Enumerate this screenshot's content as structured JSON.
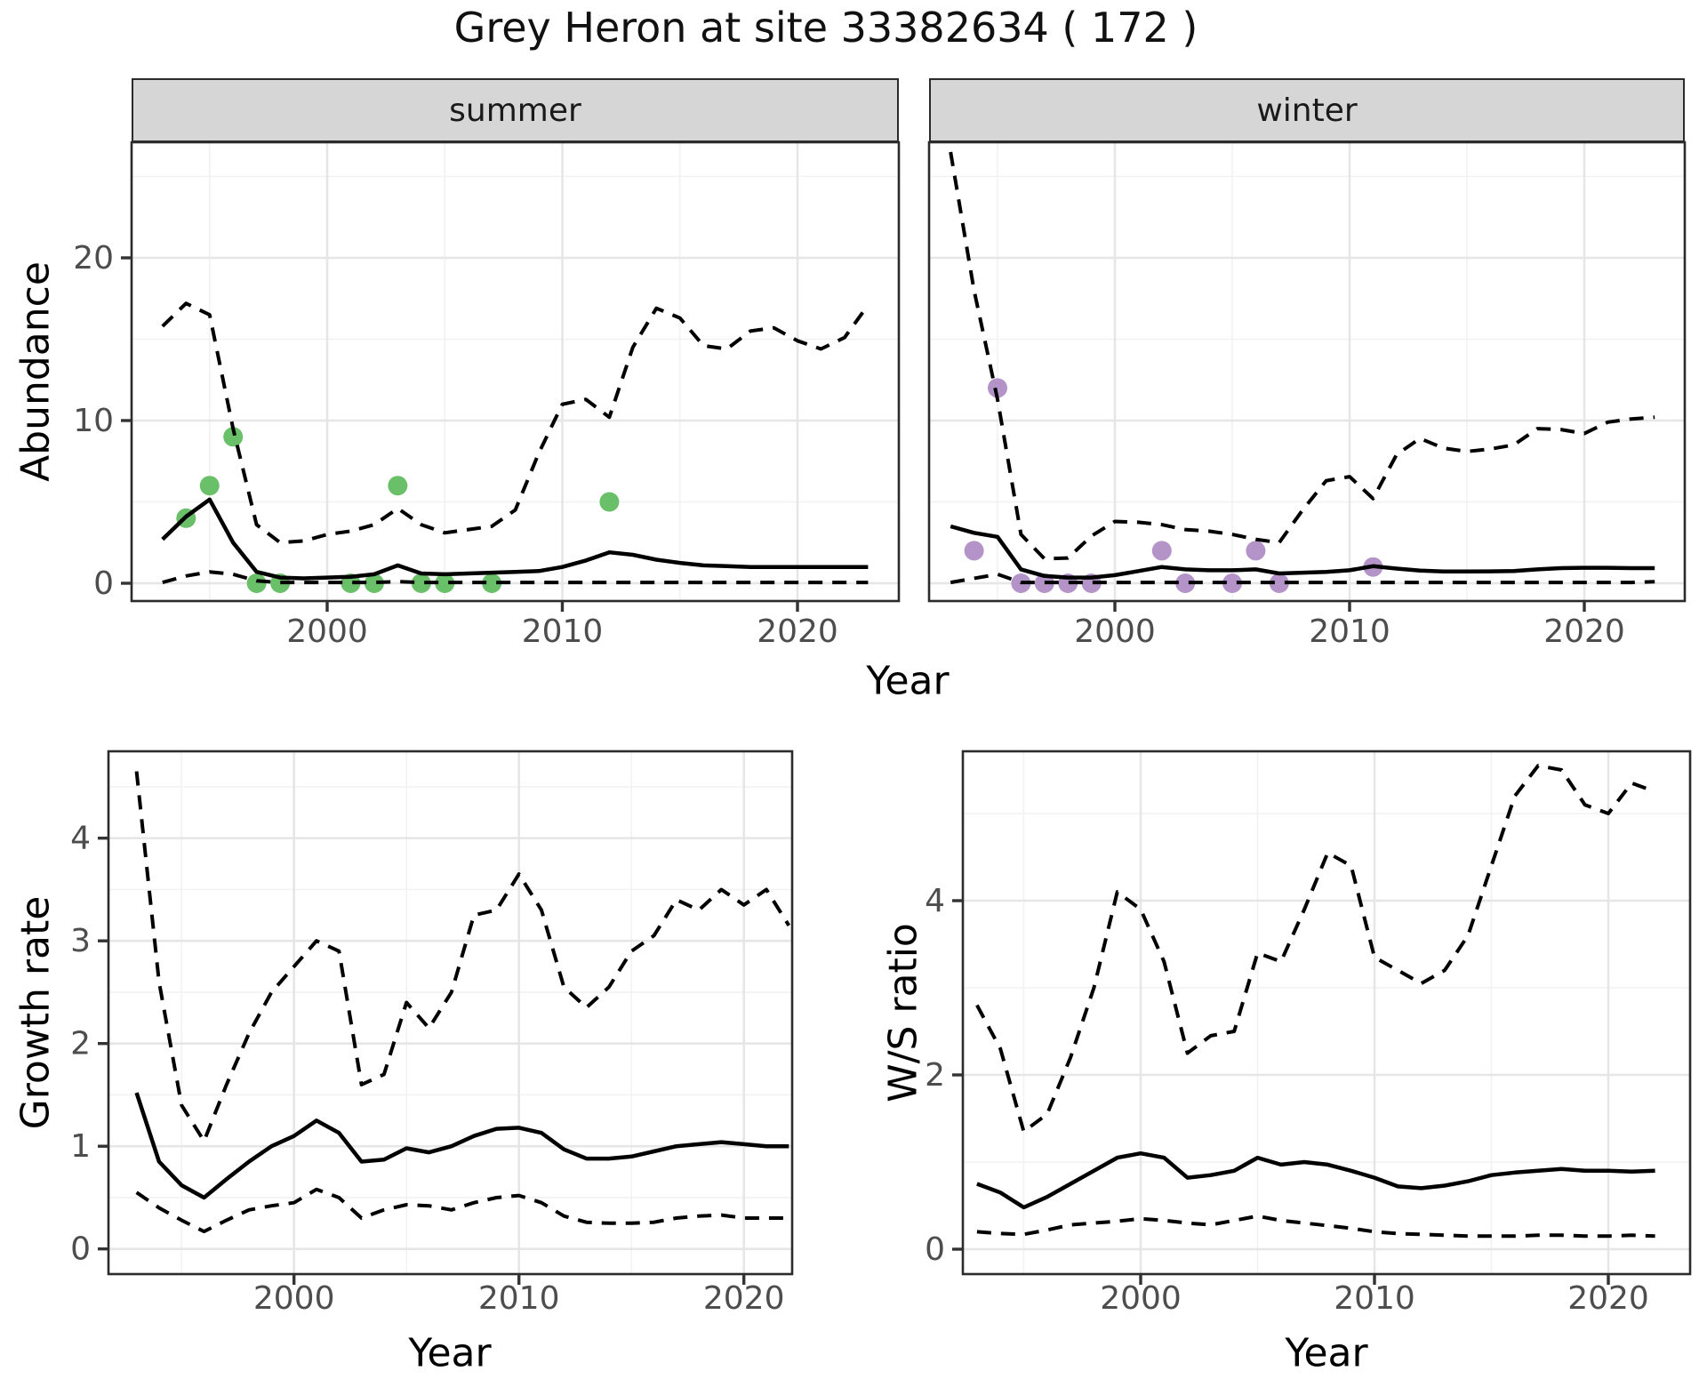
{
  "title": "Grey Heron at site 33382634 ( 172 )",
  "facets": {
    "summer_label": "summer",
    "winter_label": "winter"
  },
  "axis_titles": {
    "abundance": "Abundance",
    "growth": "Growth rate",
    "ws": "W/S ratio",
    "year": "Year"
  },
  "colors": {
    "summer_points": "#6abf69",
    "winter_points": "#b493c8",
    "line": "#000000",
    "panel_border": "#2b2b2b",
    "grid_major": "#e6e6e6",
    "grid_minor": "#f2f2f2",
    "axis_text": "#4d4d4d",
    "strip_bg": "#d6d6d6"
  },
  "chart_data": [
    {
      "name": "abundance-summer",
      "type": "line",
      "facet": "summer",
      "xlabel": "Year",
      "ylabel": "Abundance",
      "xlim": [
        1991.7,
        2024.4
      ],
      "ylim": [
        0,
        27.5
      ],
      "xticks": [
        2000,
        2010,
        2020
      ],
      "xminor": [
        1995,
        2005,
        2015
      ],
      "yticks": [
        0,
        10,
        20
      ],
      "yminor": [
        5,
        15,
        25
      ],
      "grid": true,
      "legend": "none",
      "years": [
        1993,
        1994,
        1995,
        1996,
        1997,
        1998,
        1999,
        2000,
        2001,
        2002,
        2003,
        2004,
        2005,
        2006,
        2007,
        2008,
        2009,
        2010,
        2011,
        2012,
        2013,
        2014,
        2015,
        2016,
        2017,
        2018,
        2019,
        2020,
        2021,
        2022,
        2023
      ],
      "series": [
        {
          "name": "median",
          "style": "solid",
          "values": [
            2.7,
            4.1,
            5.15,
            2.5,
            0.7,
            0.35,
            0.3,
            0.35,
            0.4,
            0.55,
            1.1,
            0.6,
            0.55,
            0.6,
            0.65,
            0.7,
            0.75,
            1.0,
            1.4,
            1.9,
            1.75,
            1.45,
            1.25,
            1.1,
            1.05,
            1.0,
            1.0,
            1.0,
            1.0,
            1.0,
            1.0
          ]
        },
        {
          "name": "upper-ci",
          "style": "dashed",
          "values": [
            15.8,
            17.2,
            16.5,
            9.5,
            3.6,
            2.5,
            2.6,
            3.0,
            3.2,
            3.6,
            4.6,
            3.6,
            3.1,
            3.3,
            3.5,
            4.5,
            8.0,
            11.0,
            11.3,
            10.2,
            14.5,
            16.9,
            16.3,
            14.6,
            14.4,
            15.5,
            15.7,
            14.9,
            14.4,
            15.1,
            17.1
          ]
        },
        {
          "name": "lower-ci",
          "style": "dashed",
          "values": [
            0.05,
            0.45,
            0.7,
            0.55,
            0.15,
            0.05,
            0.05,
            0.05,
            0.05,
            0.05,
            0.1,
            0.05,
            0.05,
            0.05,
            0.05,
            0.05,
            0.05,
            0.05,
            0.05,
            0.05,
            0.05,
            0.05,
            0.05,
            0.05,
            0.05,
            0.05,
            0.05,
            0.05,
            0.05,
            0.05,
            0.05
          ]
        }
      ],
      "points": {
        "color": "#6abf69",
        "data": [
          [
            1994,
            4
          ],
          [
            1995,
            6
          ],
          [
            1996,
            9
          ],
          [
            1997,
            0
          ],
          [
            1998,
            0
          ],
          [
            2001,
            0
          ],
          [
            2002,
            0
          ],
          [
            2003,
            6
          ],
          [
            2004,
            0
          ],
          [
            2005,
            0
          ],
          [
            2007,
            0
          ],
          [
            2012,
            5
          ]
        ]
      }
    },
    {
      "name": "abundance-winter",
      "type": "line",
      "facet": "winter",
      "xlabel": "Year",
      "ylabel": "Abundance",
      "xlim": [
        1992.1,
        2024.3
      ],
      "ylim": [
        0,
        27.5
      ],
      "xticks": [
        2000,
        2010,
        2020
      ],
      "xminor": [
        1995,
        2005,
        2015
      ],
      "yticks": [
        0,
        10,
        20
      ],
      "yminor": [
        5,
        15,
        25
      ],
      "grid": true,
      "legend": "none",
      "years": [
        1993,
        1994,
        1995,
        1996,
        1997,
        1998,
        1999,
        2000,
        2001,
        2002,
        2003,
        2004,
        2005,
        2006,
        2007,
        2008,
        2009,
        2010,
        2011,
        2012,
        2013,
        2014,
        2015,
        2016,
        2017,
        2018,
        2019,
        2020,
        2021,
        2022,
        2023
      ],
      "series": [
        {
          "name": "median",
          "style": "solid",
          "values": [
            3.5,
            3.1,
            2.85,
            0.85,
            0.45,
            0.35,
            0.35,
            0.5,
            0.75,
            1.0,
            0.85,
            0.8,
            0.8,
            0.85,
            0.6,
            0.65,
            0.7,
            0.8,
            1.05,
            0.9,
            0.78,
            0.72,
            0.72,
            0.73,
            0.75,
            0.85,
            0.93,
            0.95,
            0.95,
            0.93,
            0.93
          ]
        },
        {
          "name": "upper-ci",
          "style": "dashed",
          "values": [
            26.5,
            18.0,
            11.3,
            3.0,
            1.5,
            1.55,
            2.9,
            3.8,
            3.75,
            3.6,
            3.3,
            3.2,
            3.0,
            2.7,
            2.5,
            4.5,
            6.3,
            6.55,
            5.2,
            7.9,
            8.9,
            8.3,
            8.1,
            8.25,
            8.5,
            9.5,
            9.45,
            9.2,
            9.9,
            10.1,
            10.2
          ]
        },
        {
          "name": "lower-ci",
          "style": "dashed",
          "values": [
            0.05,
            0.3,
            0.55,
            0.05,
            0.05,
            0.05,
            0.05,
            0.05,
            0.05,
            0.05,
            0.05,
            0.05,
            0.05,
            0.05,
            0.05,
            0.05,
            0.05,
            0.05,
            0.05,
            0.05,
            0.05,
            0.05,
            0.05,
            0.05,
            0.05,
            0.05,
            0.05,
            0.05,
            0.05,
            0.05,
            0.1
          ]
        }
      ],
      "points": {
        "color": "#b493c8",
        "data": [
          [
            1994,
            2
          ],
          [
            1995,
            12
          ],
          [
            1996,
            0
          ],
          [
            1997,
            0
          ],
          [
            1998,
            0
          ],
          [
            1999,
            0
          ],
          [
            2002,
            2
          ],
          [
            2003,
            0
          ],
          [
            2005,
            0
          ],
          [
            2006,
            2
          ],
          [
            2007,
            0
          ],
          [
            2011,
            1
          ]
        ]
      }
    },
    {
      "name": "growth-rate",
      "type": "line",
      "facet": null,
      "xlabel": "Year",
      "ylabel": "Growth rate",
      "xlim": [
        1991.75,
        2022.2
      ],
      "ylim": [
        0,
        4.85
      ],
      "xticks": [
        2000,
        2010,
        2020
      ],
      "xminor": [
        1995,
        2005,
        2015
      ],
      "yticks": [
        0,
        1,
        2,
        3,
        4
      ],
      "yminor": [
        0.5,
        1.5,
        2.5,
        3.5,
        4.5
      ],
      "grid": true,
      "legend": "none",
      "years": [
        1993,
        1994,
        1995,
        1996,
        1997,
        1998,
        1999,
        2000,
        2001,
        2002,
        2003,
        2004,
        2005,
        2006,
        2007,
        2008,
        2009,
        2010,
        2011,
        2012,
        2013,
        2014,
        2015,
        2016,
        2017,
        2018,
        2019,
        2020,
        2021,
        2022
      ],
      "series": [
        {
          "name": "median",
          "style": "solid",
          "values": [
            1.52,
            0.85,
            0.62,
            0.5,
            0.68,
            0.85,
            1.0,
            1.1,
            1.25,
            1.13,
            0.85,
            0.87,
            0.98,
            0.94,
            1.0,
            1.1,
            1.17,
            1.18,
            1.13,
            0.97,
            0.88,
            0.88,
            0.9,
            0.95,
            1.0,
            1.02,
            1.04,
            1.02,
            1.0,
            1.0
          ]
        },
        {
          "name": "upper-ci",
          "style": "dashed",
          "values": [
            4.65,
            2.6,
            1.4,
            1.05,
            1.6,
            2.1,
            2.5,
            2.75,
            3.0,
            2.9,
            1.6,
            1.7,
            2.4,
            2.15,
            2.5,
            3.25,
            3.3,
            3.65,
            3.3,
            2.55,
            2.35,
            2.55,
            2.9,
            3.05,
            3.4,
            3.3,
            3.5,
            3.35,
            3.5,
            3.15
          ]
        },
        {
          "name": "lower-ci",
          "style": "dashed",
          "values": [
            0.55,
            0.4,
            0.28,
            0.17,
            0.28,
            0.38,
            0.42,
            0.45,
            0.58,
            0.5,
            0.3,
            0.38,
            0.43,
            0.42,
            0.38,
            0.45,
            0.5,
            0.52,
            0.45,
            0.32,
            0.26,
            0.25,
            0.25,
            0.26,
            0.3,
            0.32,
            0.33,
            0.3,
            0.3,
            0.3
          ]
        }
      ],
      "points": null
    },
    {
      "name": "ws-ratio",
      "type": "line",
      "facet": null,
      "xlabel": "Year",
      "ylabel": "W/S ratio",
      "xlim": [
        1992.9,
        2023.4
      ],
      "ylim": [
        0,
        5.7
      ],
      "xticks": [
        2000,
        2010,
        2020
      ],
      "xminor": [
        1995,
        2005,
        2015
      ],
      "yticks": [
        0,
        2,
        4
      ],
      "yminor": [
        1,
        3,
        5
      ],
      "grid": true,
      "legend": "none",
      "years": [
        1993,
        1994,
        1995,
        1996,
        1997,
        1998,
        1999,
        2000,
        2001,
        2002,
        2003,
        2004,
        2005,
        2006,
        2007,
        2008,
        2009,
        2010,
        2011,
        2012,
        2013,
        2014,
        2015,
        2016,
        2017,
        2018,
        2019,
        2020,
        2021,
        2022
      ],
      "series": [
        {
          "name": "median",
          "style": "solid",
          "values": [
            0.75,
            0.65,
            0.48,
            0.6,
            0.75,
            0.9,
            1.05,
            1.1,
            1.05,
            0.82,
            0.85,
            0.9,
            1.05,
            0.97,
            1.0,
            0.97,
            0.9,
            0.82,
            0.72,
            0.7,
            0.73,
            0.78,
            0.85,
            0.88,
            0.9,
            0.92,
            0.9,
            0.9,
            0.89,
            0.9
          ]
        },
        {
          "name": "upper-ci",
          "style": "dashed",
          "values": [
            2.8,
            2.3,
            1.35,
            1.55,
            2.2,
            3.0,
            4.1,
            3.9,
            3.3,
            2.25,
            2.45,
            2.5,
            3.4,
            3.3,
            3.9,
            4.55,
            4.4,
            3.35,
            3.2,
            3.05,
            3.2,
            3.6,
            4.4,
            5.2,
            5.55,
            5.5,
            5.1,
            5.0,
            5.35,
            5.25
          ]
        },
        {
          "name": "lower-ci",
          "style": "dashed",
          "values": [
            0.2,
            0.18,
            0.17,
            0.22,
            0.28,
            0.3,
            0.32,
            0.35,
            0.33,
            0.3,
            0.28,
            0.33,
            0.38,
            0.33,
            0.3,
            0.27,
            0.24,
            0.2,
            0.18,
            0.17,
            0.16,
            0.15,
            0.15,
            0.15,
            0.16,
            0.16,
            0.15,
            0.15,
            0.16,
            0.15
          ]
        }
      ],
      "points": null
    }
  ]
}
